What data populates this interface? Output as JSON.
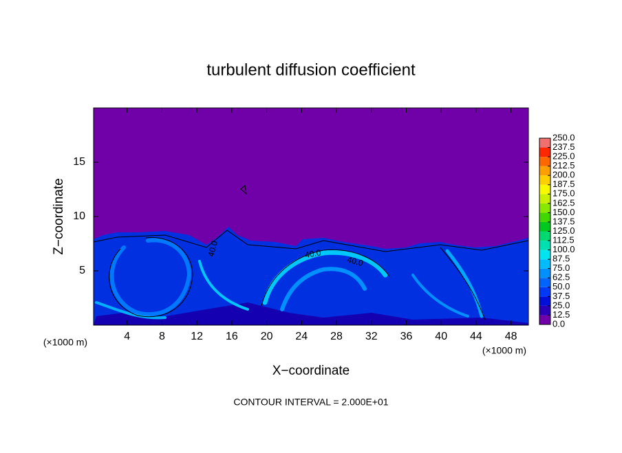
{
  "chart_data": {
    "type": "contour",
    "title": "turbulent diffusion coefficient",
    "xlabel": "X−coordinate",
    "ylabel": "Z−coordinate",
    "x_unit": "(×1000 m)",
    "z_unit": "(×1000 m)",
    "footnote": "CONTOUR INTERVAL = 2.000E+01",
    "xlim": [
      0,
      50
    ],
    "ylim": [
      0,
      20
    ],
    "xticks": [
      4,
      8,
      12,
      16,
      20,
      24,
      28,
      32,
      36,
      40,
      44,
      48
    ],
    "yticks": [
      5,
      10,
      15
    ],
    "contour_labels": [
      "40.0",
      "40.0",
      "40.0"
    ],
    "colorbar": {
      "levels": [
        {
          "value": 0,
          "label": "0.0"
        },
        {
          "value": 12.5,
          "label": "12.5"
        },
        {
          "value": 25,
          "label": "25.0"
        },
        {
          "value": 37.5,
          "label": "37.5"
        },
        {
          "value": 50,
          "label": "50.0"
        },
        {
          "value": 62.5,
          "label": "62.5"
        },
        {
          "value": 75,
          "label": "75.0"
        },
        {
          "value": 87.5,
          "label": "87.5"
        },
        {
          "value": 100,
          "label": "100.0"
        },
        {
          "value": 112.5,
          "label": "112.5"
        },
        {
          "value": 125,
          "label": "125.0"
        },
        {
          "value": 137.5,
          "label": "137.5"
        },
        {
          "value": 150,
          "label": "150.0"
        },
        {
          "value": 162.5,
          "label": "162.5"
        },
        {
          "value": 175,
          "label": "175.0"
        },
        {
          "value": 187.5,
          "label": "187.5"
        },
        {
          "value": 200,
          "label": "200.0"
        },
        {
          "value": 212.5,
          "label": "212.5"
        },
        {
          "value": 225,
          "label": "225.0"
        },
        {
          "value": 237.5,
          "label": "237.5"
        },
        {
          "value": 250,
          "label": "250.0"
        }
      ],
      "colors": [
        "#7000a8",
        "#2a00b8",
        "#0010d8",
        "#0038f8",
        "#0064ff",
        "#0090ff",
        "#00bcff",
        "#00e4f0",
        "#00e0b0",
        "#00d870",
        "#00c820",
        "#40d800",
        "#88e800",
        "#c8f000",
        "#f8f800",
        "#ffd000",
        "#ffa000",
        "#ff6800",
        "#ff2800",
        "#f07070"
      ]
    }
  }
}
